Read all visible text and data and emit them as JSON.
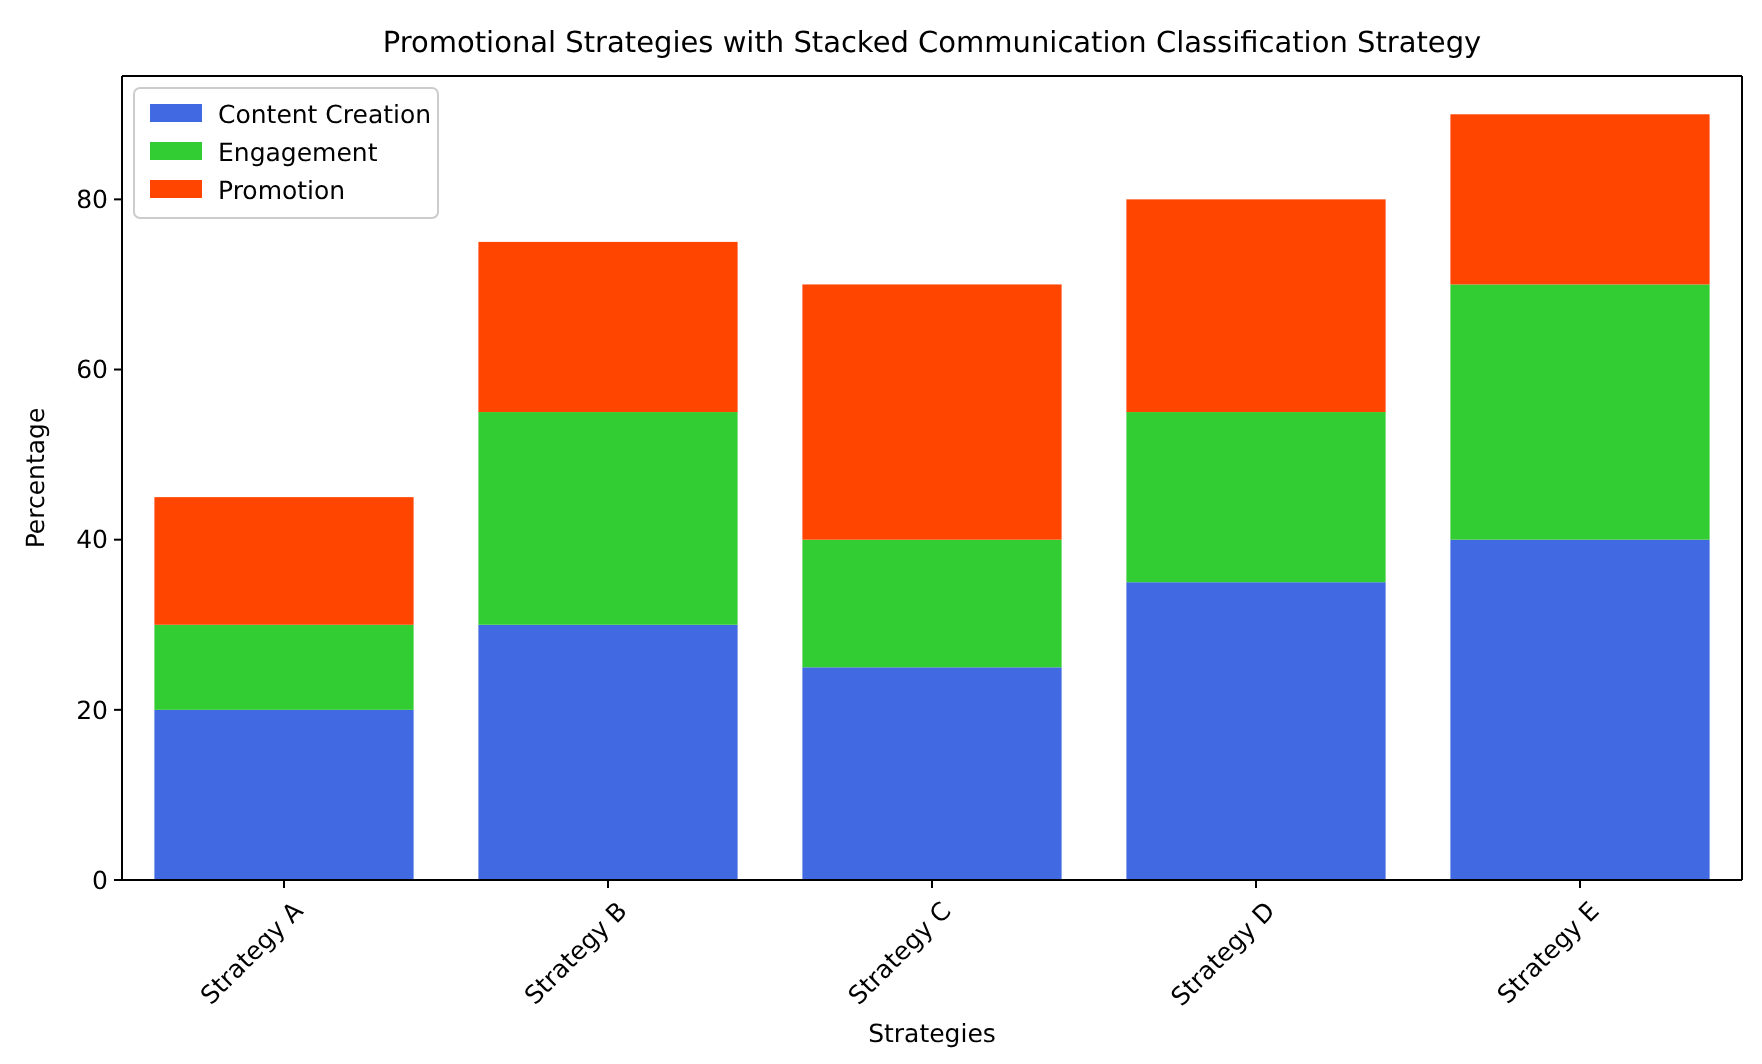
{
  "chart_data": {
    "type": "bar",
    "title": "Promotional Strategies with Stacked Communication Classification Strategy",
    "xlabel": "Strategies",
    "ylabel": "Percentage",
    "categories": [
      "Strategy A",
      "Strategy B",
      "Strategy C",
      "Strategy D",
      "Strategy E"
    ],
    "stacked": true,
    "series": [
      {
        "name": "Content Creation",
        "color": "#4169e1",
        "values": [
          20,
          30,
          25,
          35,
          40
        ]
      },
      {
        "name": "Engagement",
        "color": "#32cd32",
        "values": [
          10,
          25,
          15,
          20,
          30
        ]
      },
      {
        "name": "Promotion",
        "color": "#ff4500",
        "values": [
          15,
          20,
          30,
          25,
          20
        ]
      }
    ],
    "ylim": [
      0,
      94.5
    ],
    "yticks": [
      0,
      20,
      40,
      60,
      80
    ],
    "legend": "top left",
    "grid": false
  }
}
